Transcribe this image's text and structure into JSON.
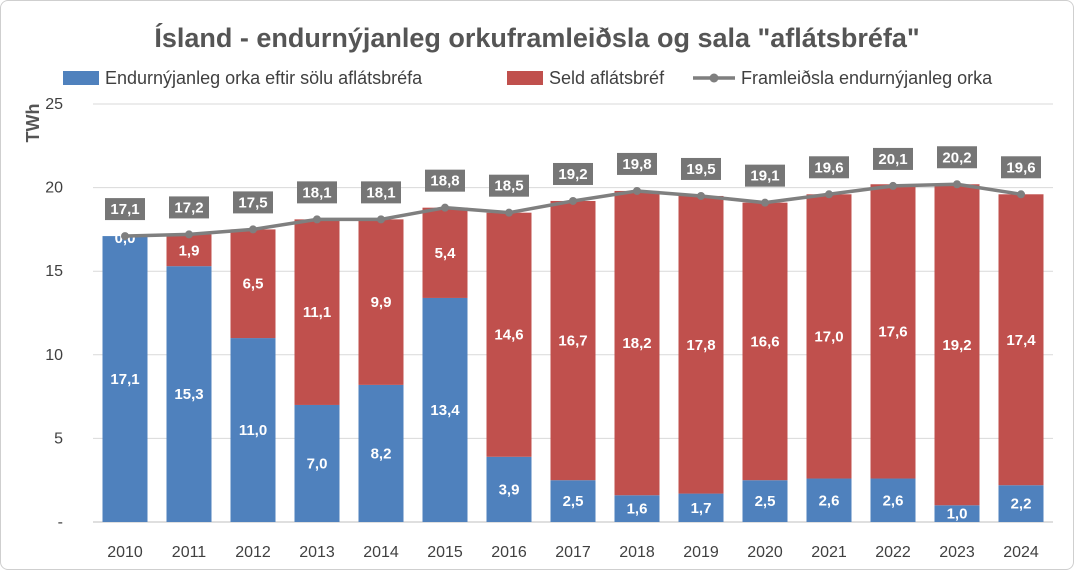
{
  "chart_data": {
    "type": "bar",
    "title": "Ísland - endurnýjanleg orkuframleiðsla og sala \"aflátsbréfa\"",
    "ylabel": "TWh",
    "xlabel": "",
    "ylim": [
      0,
      25
    ],
    "yticks": [
      "-",
      "5",
      "10",
      "15",
      "20",
      "25"
    ],
    "categories": [
      "2010",
      "2011",
      "2012",
      "2013",
      "2014",
      "2015",
      "2016",
      "2017",
      "2018",
      "2019",
      "2020",
      "2021",
      "2022",
      "2023",
      "2024"
    ],
    "legend_position": "top",
    "grid": true,
    "series": [
      {
        "name": "Endurnýjanleg orka eftir sölu aflátsbréfa",
        "kind": "stacked-bar",
        "color": "#4f81bd",
        "values": [
          17.1,
          15.3,
          11.0,
          7.0,
          8.2,
          13.4,
          3.9,
          2.5,
          1.6,
          1.7,
          2.5,
          2.6,
          2.6,
          1.0,
          2.2
        ],
        "labels": [
          "17,1",
          "15,3",
          "11,0",
          "7,0",
          "8,2",
          "13,4",
          "3,9",
          "2,5",
          "1,6",
          "1,7",
          "2,5",
          "2,6",
          "2,6",
          "1,0",
          "2,2"
        ]
      },
      {
        "name": "Seld aflátsbréf",
        "kind": "stacked-bar",
        "color": "#c0504d",
        "values": [
          0.0,
          1.9,
          6.5,
          11.1,
          9.9,
          5.4,
          14.6,
          16.7,
          18.2,
          17.8,
          16.6,
          17.0,
          17.6,
          19.2,
          17.4
        ],
        "labels": [
          "0,0",
          "1,9",
          "6,5",
          "11,1",
          "9,9",
          "5,4",
          "14,6",
          "16,7",
          "18,2",
          "17,8",
          "16,6",
          "17,0",
          "17,6",
          "19,2",
          "17,4"
        ]
      },
      {
        "name": "Framleiðsla endurnýjanleg orka",
        "kind": "line",
        "color": "#7f7f7f",
        "values": [
          17.1,
          17.2,
          17.5,
          18.1,
          18.1,
          18.8,
          18.5,
          19.2,
          19.8,
          19.5,
          19.1,
          19.6,
          20.1,
          20.2,
          19.6
        ],
        "labels": [
          "17,1",
          "17,2",
          "17,5",
          "18,1",
          "18,1",
          "18,8",
          "18,5",
          "19,2",
          "19,8",
          "19,5",
          "19,1",
          "19,6",
          "20,1",
          "20,2",
          "19,6"
        ]
      }
    ]
  }
}
